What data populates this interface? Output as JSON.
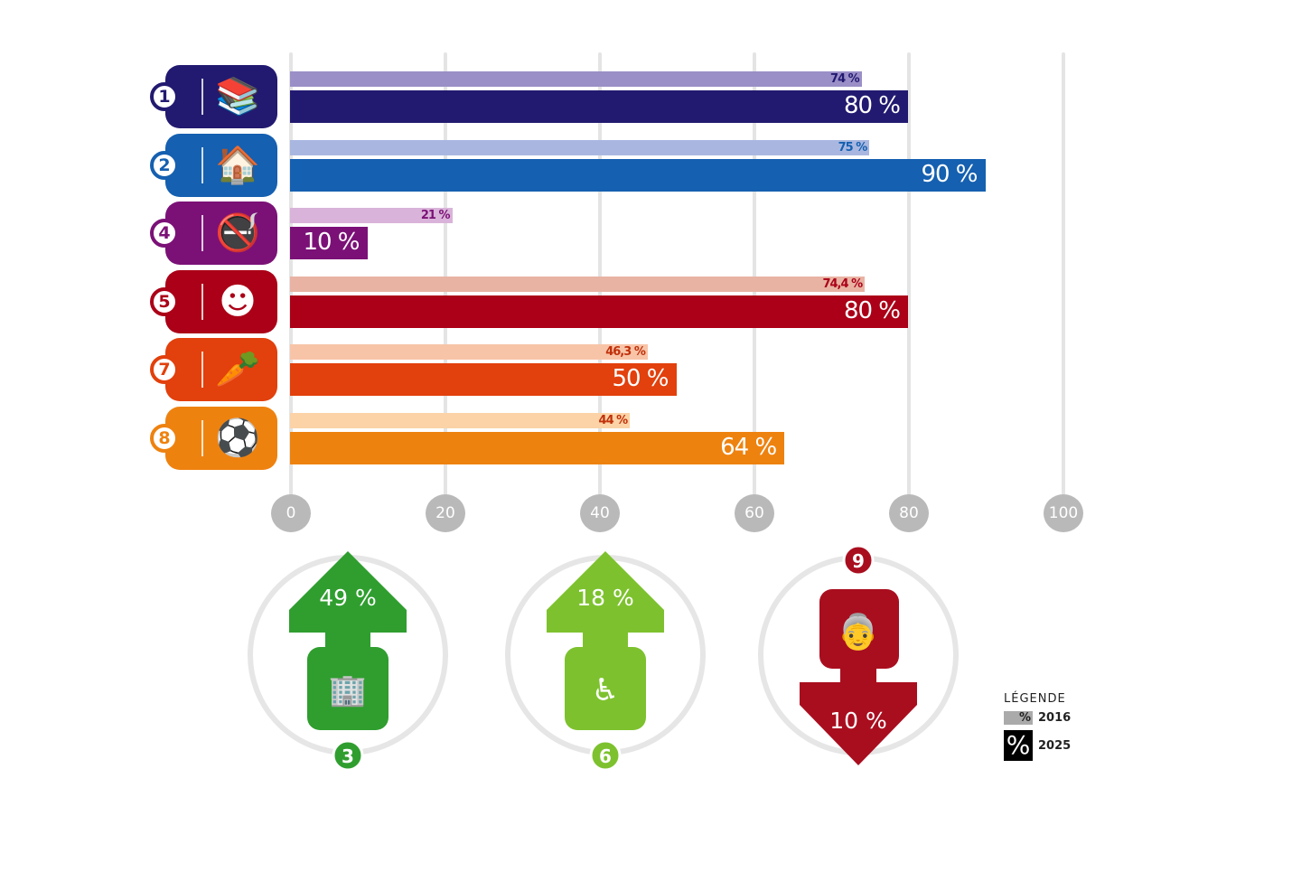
{
  "chart_data": {
    "type": "bar",
    "orientation": "horizontal",
    "categories": [
      "1",
      "2",
      "4",
      "5",
      "7",
      "8"
    ],
    "icons": [
      "books-apple-icon",
      "house-tree-icon",
      "no-smoking-icon",
      "smiley-icon",
      "vegetables-grapes-icon",
      "child-football-icon"
    ],
    "series": [
      {
        "name": "2016",
        "values": [
          74,
          75,
          21,
          74.4,
          46.3,
          44
        ],
        "labels": [
          "74 %",
          "75 %",
          "21 %",
          "74,4 %",
          "46,3 %",
          "44 %"
        ]
      },
      {
        "name": "2025",
        "values": [
          80,
          90,
          10,
          80,
          50,
          64
        ],
        "labels": [
          "80 %",
          "90 %",
          "10 %",
          "80 %",
          "50 %",
          "64 %"
        ]
      }
    ],
    "colors_2025": [
      "#221a70",
      "#1560b0",
      "#7b1177",
      "#ab0017",
      "#e2400c",
      "#ee820f"
    ],
    "colors_2016": [
      "#9b8fc7",
      "#a9b7e0",
      "#d9b3d9",
      "#e8b3a3",
      "#f8c4a8",
      "#fbd3a6"
    ],
    "label_colors_2016": [
      "#221a70",
      "#1560b0",
      "#7b1177",
      "#ab0017",
      "#c0300a",
      "#c0300a"
    ],
    "xlim": [
      0,
      100
    ],
    "xticks": [
      "0",
      "20",
      "40",
      "60",
      "80",
      "100"
    ],
    "grid": true,
    "legend_position": "bottom-right"
  },
  "indicators": [
    {
      "number": "3",
      "value": "49 %",
      "direction": "up",
      "color": "#2f9e2f",
      "icon": "buildings-icon"
    },
    {
      "number": "6",
      "value": "18 %",
      "direction": "up",
      "color": "#7dc22e",
      "icon": "care-home-icon"
    },
    {
      "number": "9",
      "value": "10 %",
      "direction": "down",
      "color": "#a90e1f",
      "icon": "elderly-person-icon"
    }
  ],
  "legend": {
    "title": "LÉGENDE",
    "symbol": "%",
    "items": [
      "2016",
      "2025"
    ],
    "colors": [
      "#aaaaaa",
      "#000000"
    ]
  }
}
